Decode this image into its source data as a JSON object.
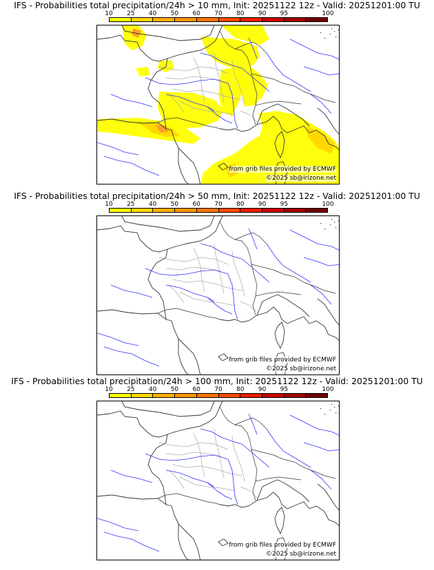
{
  "scale": {
    "labels": [
      "10",
      "25",
      "40",
      "50",
      "60",
      "70",
      "80",
      "90",
      "95",
      "100"
    ],
    "colors": [
      "#ffff00",
      "#ffd700",
      "#ffb000",
      "#ff9400",
      "#ff7400",
      "#ff4800",
      "#ee1c00",
      "#cc0000",
      "#a20000",
      "#6e0000"
    ]
  },
  "colors": {
    "border": "#333333",
    "river": "#3030ff",
    "department": "#aaaaaa",
    "prob_low": "#ffff00",
    "prob_mid": "#ffd700",
    "prob_high": "#ff9a30"
  },
  "panels": [
    {
      "title": "IFS - Probabilities total precipitation/24h > 10 mm, Init: 20251122 12z - Valid: 20251201:00 TU",
      "credit_source": "from grib files provided by ECMWF",
      "credit_copyright": "©2025 sb@irizone.net",
      "has_probability_field": true
    },
    {
      "title": "IFS - Probabilities total precipitation/24h > 50 mm, Init: 20251122 12z - Valid: 20251201:00 TU",
      "credit_source": "from grib files provided by ECMWF",
      "credit_copyright": "©2025 sb@irizone.net",
      "has_probability_field": false
    },
    {
      "title": "IFS - Probabilities total precipitation/24h > 100 mm, Init: 20251122 12z - Valid: 20251201:00 TU",
      "credit_source": "from grib files provided by ECMWF",
      "credit_copyright": "©2025 sb@irizone.net",
      "has_probability_field": false
    }
  ]
}
